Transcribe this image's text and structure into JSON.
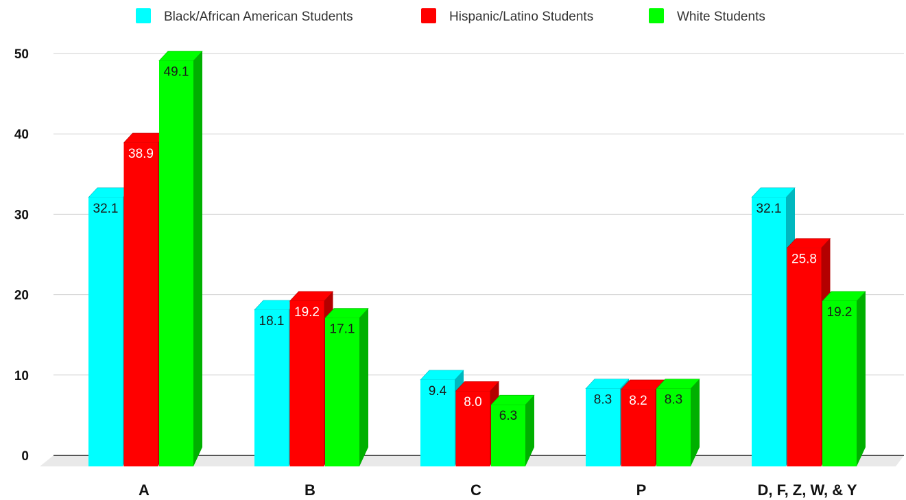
{
  "chart_data": {
    "type": "bar",
    "style": "3d-clustered",
    "categories": [
      "A",
      "B",
      "C",
      "P",
      "D, F, Z, W, & Y"
    ],
    "series": [
      {
        "name": "Black/African American Students",
        "values": [
          32.1,
          18.1,
          9.4,
          8.3,
          32.1
        ],
        "color": "#00FFFF",
        "side_color": "#00B8BF",
        "label_color": "#1a1a1a"
      },
      {
        "name": "Hispanic/Latino Students",
        "values": [
          38.9,
          19.2,
          8.0,
          8.2,
          25.8
        ],
        "color": "#FF0000",
        "side_color": "#B30000",
        "label_color": "#ffffff"
      },
      {
        "name": "White Students",
        "values": [
          49.1,
          17.1,
          6.3,
          8.3,
          19.2
        ],
        "color": "#00FF00",
        "side_color": "#00B000",
        "label_color": "#1a1a1a"
      }
    ],
    "data_labels": [
      [
        "32.1",
        "18.1",
        "9.4",
        "8.3",
        "32.1"
      ],
      [
        "38.9",
        "19.2",
        "8.0",
        "8.2",
        "25.8"
      ],
      [
        "49.1",
        "17.1",
        "6.3",
        "8.3",
        "19.2"
      ]
    ],
    "yticks": [
      0,
      10,
      20,
      30,
      40,
      50
    ],
    "ytick_labels": [
      "0",
      "10",
      "20",
      "30",
      "40",
      "50"
    ],
    "ylim": [
      0,
      50
    ],
    "grid": true,
    "legend_position": "top-center",
    "title": "",
    "xlabel": "",
    "ylabel": ""
  }
}
